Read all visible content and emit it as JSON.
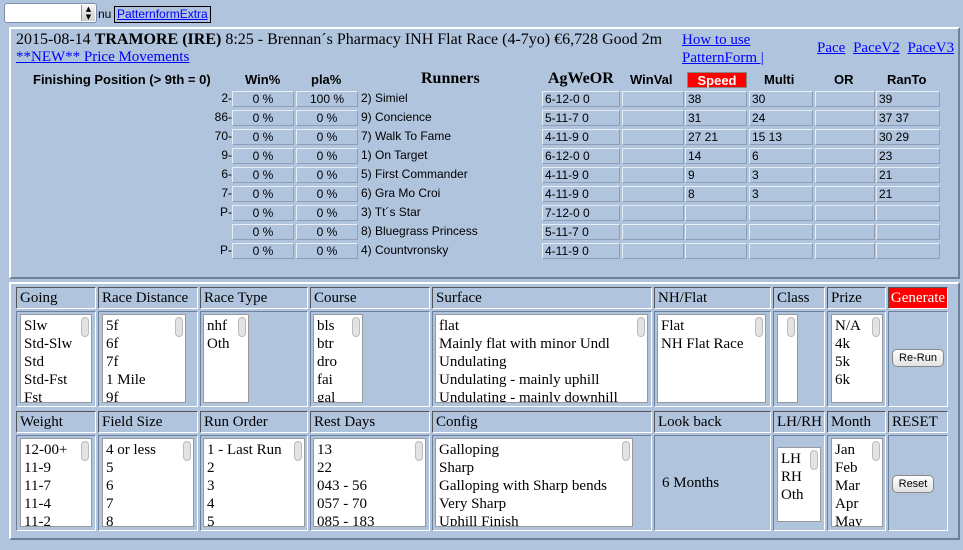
{
  "topbar": {
    "select_value": "",
    "nu_text": "nu",
    "patternform_link": "PatternformExtra"
  },
  "race": {
    "date": "2015-08-14",
    "course": "TRAMORE (IRE)",
    "details": "8:25 - Brennan´s Pharmacy INH Flat Race (4-7yo) €6,728 Good 2m",
    "new_link": "**NEW** Price Movements",
    "howto_line1": "How to use",
    "howto_line2": "PatternForm |",
    "pace_links": [
      "Pace",
      "PaceV2",
      "PaceV3"
    ]
  },
  "columns": {
    "finishing": "Finishing Position (> 9th = 0)",
    "win": "Win%",
    "pla": "pla%",
    "runners": "Runners",
    "agweor": "AgWeOR",
    "winval": "WinVal",
    "speed": "Speed",
    "multi": "Multi",
    "or": "OR",
    "ranto": "RanTo"
  },
  "runners": [
    {
      "pos": "2-",
      "win": "0 %",
      "pla": "100 %",
      "name": "2) Simiel",
      "agweor": "6-12-0 0",
      "winval": "",
      "speed": "38",
      "multi": "30",
      "or": "",
      "ranto": "39"
    },
    {
      "pos": "86-",
      "win": "0 %",
      "pla": "0 %",
      "name": "9) Concience",
      "agweor": "5-11-7 0",
      "winval": "",
      "speed": "31",
      "multi": "24",
      "or": "",
      "ranto": "37 37"
    },
    {
      "pos": "70-",
      "win": "0 %",
      "pla": "0 %",
      "name": "7) Walk To Fame",
      "agweor": "4-11-9 0",
      "winval": "",
      "speed": "27 21",
      "multi": "15 13",
      "or": "",
      "ranto": "30 29"
    },
    {
      "pos": "9-",
      "win": "0 %",
      "pla": "0 %",
      "name": "1) On Target",
      "agweor": "6-12-0 0",
      "winval": "",
      "speed": "14",
      "multi": "6",
      "or": "",
      "ranto": "23"
    },
    {
      "pos": "6-",
      "win": "0 %",
      "pla": "0 %",
      "name": "5) First Commander",
      "agweor": "4-11-9 0",
      "winval": "",
      "speed": "9",
      "multi": "3",
      "or": "",
      "ranto": "21"
    },
    {
      "pos": "7-",
      "win": "0 %",
      "pla": "0 %",
      "name": "6) Gra Mo Croi",
      "agweor": "4-11-9 0",
      "winval": "",
      "speed": "8",
      "multi": "3",
      "or": "",
      "ranto": "21"
    },
    {
      "pos": "P-",
      "win": "0 %",
      "pla": "0 %",
      "name": "3) Tt´s Star",
      "agweor": "7-12-0 0",
      "winval": "",
      "speed": "",
      "multi": "",
      "or": "",
      "ranto": ""
    },
    {
      "pos": "",
      "win": "0 %",
      "pla": "0 %",
      "name": "8) Bluegrass Princess",
      "agweor": "5-11-7 0",
      "winval": "",
      "speed": "",
      "multi": "",
      "or": "",
      "ranto": ""
    },
    {
      "pos": "P-",
      "win": "0 %",
      "pla": "0 %",
      "name": "4) Countvronsky",
      "agweor": "4-11-9 0",
      "winval": "",
      "speed": "",
      "multi": "",
      "or": "",
      "ranto": ""
    }
  ],
  "filters": {
    "going": {
      "label": "Going",
      "options": [
        "Slw",
        "Std-Slw",
        "Std",
        "Std-Fst",
        "Fst"
      ]
    },
    "distance": {
      "label": "Race Distance",
      "options": [
        "5f",
        "6f",
        "7f",
        "1 Mile",
        "9f"
      ]
    },
    "racetype": {
      "label": "Race Type",
      "options": [
        "nhf",
        "Oth"
      ]
    },
    "course": {
      "label": "Course",
      "options": [
        "bls",
        "btr",
        "dro",
        "fai",
        "gal"
      ]
    },
    "surface": {
      "label": "Surface",
      "options": [
        "flat",
        "Mainly flat with minor Undl",
        "Undulating",
        "Undulating - mainly uphill",
        "Undulating - mainly downhill"
      ]
    },
    "nhflat": {
      "label": "NH/Flat",
      "options": [
        "Flat",
        "NH Flat Race"
      ]
    },
    "class": {
      "label": "Class",
      "options": []
    },
    "prize": {
      "label": "Prize",
      "options": [
        "N/A",
        "4k",
        "5k",
        "6k"
      ]
    },
    "generate": "Generate",
    "rerun": "Re-Run",
    "weight": {
      "label": "Weight",
      "options": [
        "12-00+",
        "11-9",
        "11-7",
        "11-4",
        "11-2"
      ]
    },
    "fieldsize": {
      "label": "Field Size",
      "options": [
        "4 or less",
        "5",
        "6",
        "7",
        "8"
      ]
    },
    "runorder": {
      "label": "Run Order",
      "options": [
        "1 - Last Run",
        "2",
        "3",
        "4",
        "5"
      ]
    },
    "restdays": {
      "label": "Rest Days",
      "options": [
        "13",
        "22",
        "043 - 56",
        "057 - 70",
        "085 - 183"
      ]
    },
    "config": {
      "label": "Config",
      "options": [
        "Galloping",
        "Sharp",
        "Galloping with Sharp bends",
        "Very Sharp",
        "Uphill Finish"
      ]
    },
    "lookback": {
      "label": "Look back",
      "value": "6 Months"
    },
    "lhrh": {
      "label": "LH/RH",
      "options": [
        "LH",
        "RH",
        "Oth"
      ]
    },
    "month": {
      "label": "Month",
      "options": [
        "Jan",
        "Feb",
        "Mar",
        "Apr",
        "May"
      ]
    },
    "reset_label": "RESET",
    "reset_button": "Reset"
  },
  "colors": {
    "background": "#b0c4de",
    "link": "#0000ff",
    "accent_red": "#ff0000"
  }
}
